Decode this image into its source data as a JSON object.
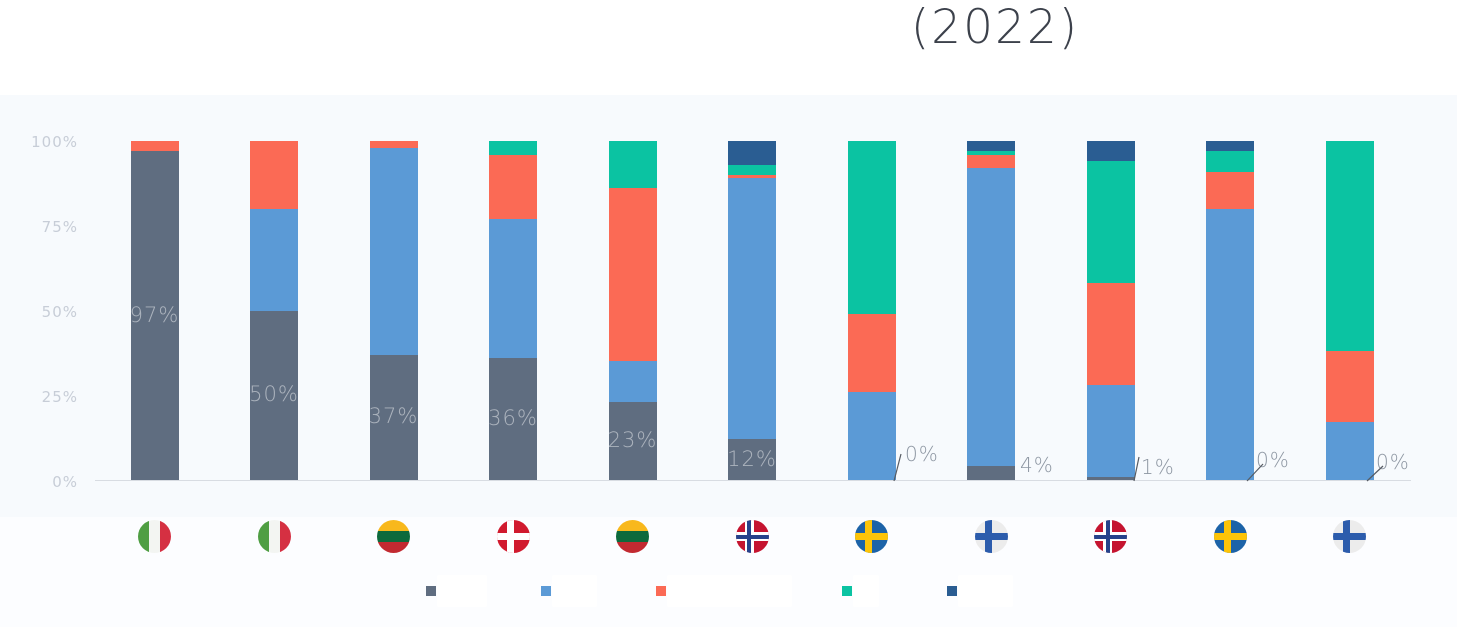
{
  "title": "(2022)",
  "y_axis": {
    "ticks": [
      "100%",
      "75%",
      "50%",
      "25%",
      "0%"
    ]
  },
  "legend": {
    "items": [
      {
        "name": "gray",
        "color": "#5f6d80",
        "label": ""
      },
      {
        "name": "blue",
        "color": "#5b9ad6",
        "label": ""
      },
      {
        "name": "red",
        "color": "#fb6a55",
        "label": ""
      },
      {
        "name": "green",
        "color": "#0bc3a2",
        "label": ""
      },
      {
        "name": "navy",
        "color": "#2a5d92",
        "label": ""
      }
    ]
  },
  "chart_data": {
    "type": "bar",
    "stacked": true,
    "title": "(2022)",
    "grid": false,
    "legend_position": "bottom",
    "ylim": [
      0,
      100
    ],
    "y_ticks": [
      "100%",
      "75%",
      "50%",
      "25%",
      "0%"
    ],
    "categories": [
      "Italy",
      "Italy",
      "Lithuania",
      "Denmark",
      "Lithuania",
      "Norway",
      "Sweden",
      "Finland",
      "Norway",
      "Sweden",
      "Finland"
    ],
    "flags": [
      "italy",
      "italy",
      "lithuania",
      "denmark",
      "lithuania",
      "norway",
      "sweden",
      "finland",
      "norway",
      "sweden",
      "finland"
    ],
    "series": [
      {
        "name": "gray",
        "color": "#5f6d80",
        "values": [
          97,
          50,
          37,
          36,
          23,
          12,
          0,
          4,
          1,
          0,
          0
        ]
      },
      {
        "name": "blue",
        "color": "#5b9ad6",
        "values": [
          0,
          30,
          61,
          41,
          12,
          77,
          26,
          88,
          27,
          80,
          17
        ]
      },
      {
        "name": "red",
        "color": "#fb6a55",
        "values": [
          3,
          20,
          2,
          19,
          51,
          1,
          23,
          4,
          30,
          11,
          21
        ]
      },
      {
        "name": "green",
        "color": "#0bc3a2",
        "values": [
          0,
          0,
          0,
          4,
          14,
          3,
          51,
          1,
          36,
          6,
          62
        ]
      },
      {
        "name": "navy",
        "color": "#2a5d92",
        "values": [
          0,
          0,
          0,
          0,
          0,
          7,
          0,
          3,
          6,
          3,
          0
        ]
      }
    ],
    "bar_labels": [
      "97%",
      "50%",
      "37%",
      "36%",
      "23%",
      "12%",
      "0%",
      "4%",
      "1%",
      "0%",
      "0%"
    ]
  }
}
